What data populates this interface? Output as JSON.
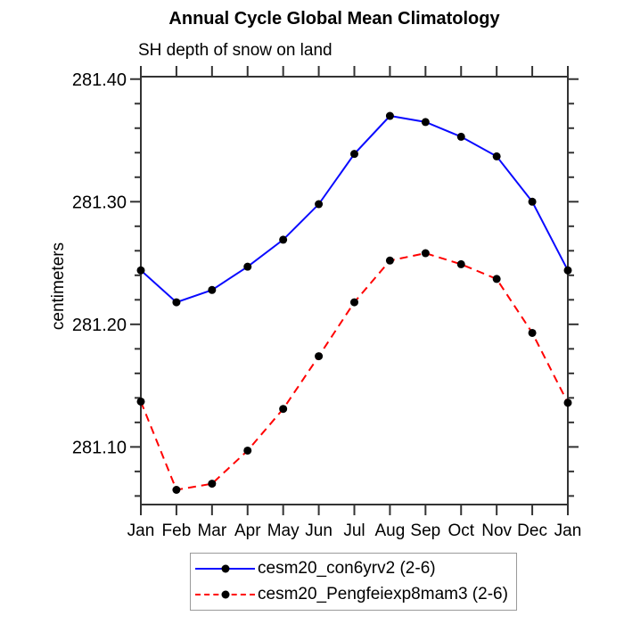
{
  "page": {
    "title": "Annual Cycle Global Mean Climatology",
    "subtitle": "SH depth of snow on land"
  },
  "chart_data": {
    "type": "line",
    "title": "Annual Cycle Global Mean Climatology",
    "subtitle": "SH depth of snow on land",
    "ylabel": "centimeters",
    "xlabel": "",
    "x_tick_labels": [
      "Jan",
      "Feb",
      "Mar",
      "Apr",
      "May",
      "Jun",
      "Jul",
      "Aug",
      "Sep",
      "Oct",
      "Nov",
      "Dec",
      "Jan"
    ],
    "ylim": [
      281.053,
      281.402
    ],
    "yticks": [
      281.1,
      281.2,
      281.3,
      281.4
    ],
    "ytick_labels": [
      "281.10",
      "281.20",
      "281.30",
      "281.40"
    ],
    "y_minor_step": 0.02,
    "grid": false,
    "axis_color": "#333333",
    "text_color": "#000000",
    "legend_position": "bottom",
    "series": [
      {
        "name": "cesm20_con6yrv2 (2-6)",
        "color": "#0a0aff",
        "line_style": "solid",
        "marker": "circle",
        "marker_color": "#000000",
        "values": [
          281.244,
          281.218,
          281.228,
          281.247,
          281.269,
          281.298,
          281.339,
          281.37,
          281.365,
          281.353,
          281.337,
          281.3,
          281.244
        ]
      },
      {
        "name": "cesm20_Pengfeiexp8mam3 (2-6)",
        "color": "#ff0000",
        "line_style": "dashed",
        "marker": "circle",
        "marker_color": "#000000",
        "values": [
          281.137,
          281.065,
          281.07,
          281.097,
          281.131,
          281.174,
          281.218,
          281.252,
          281.258,
          281.249,
          281.237,
          281.193,
          281.136
        ]
      }
    ]
  }
}
